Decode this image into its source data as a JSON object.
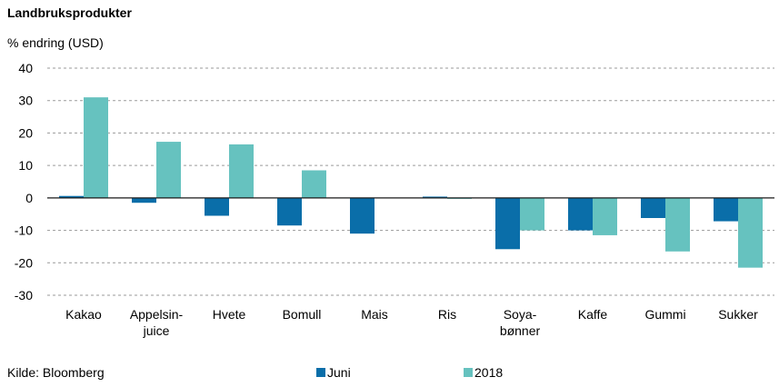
{
  "chart_data": {
    "type": "bar",
    "title": "Landbruksprodukter",
    "ylabel": "% endring (USD)",
    "categories": [
      [
        "Kakao"
      ],
      [
        "Appelsin-",
        "juice"
      ],
      [
        "Hvete"
      ],
      [
        "Bomull"
      ],
      [
        "Mais"
      ],
      [
        "Ris"
      ],
      [
        "Soya-",
        "bønner"
      ],
      [
        "Kaffe"
      ],
      [
        "Gummi"
      ],
      [
        "Sukker"
      ]
    ],
    "series": [
      {
        "name": "Juni",
        "color": "#0a6ea9",
        "values": [
          0.6,
          -1.5,
          -5.5,
          -8.5,
          -11,
          0.4,
          -15.8,
          -10,
          -6.2,
          -7.2
        ]
      },
      {
        "name": "2018",
        "color": "#66c2bf",
        "values": [
          31,
          17.3,
          16.5,
          8.5,
          0,
          -0.3,
          -10,
          -11.5,
          -16.5,
          -21.5
        ]
      }
    ],
    "ylim": [
      -30,
      40
    ],
    "yticks": [
      40,
      30,
      20,
      10,
      0,
      -10,
      -20,
      -30
    ],
    "grid": true,
    "legend": "bottom-center"
  },
  "footer": {
    "source": "Kilde: Bloomberg"
  }
}
